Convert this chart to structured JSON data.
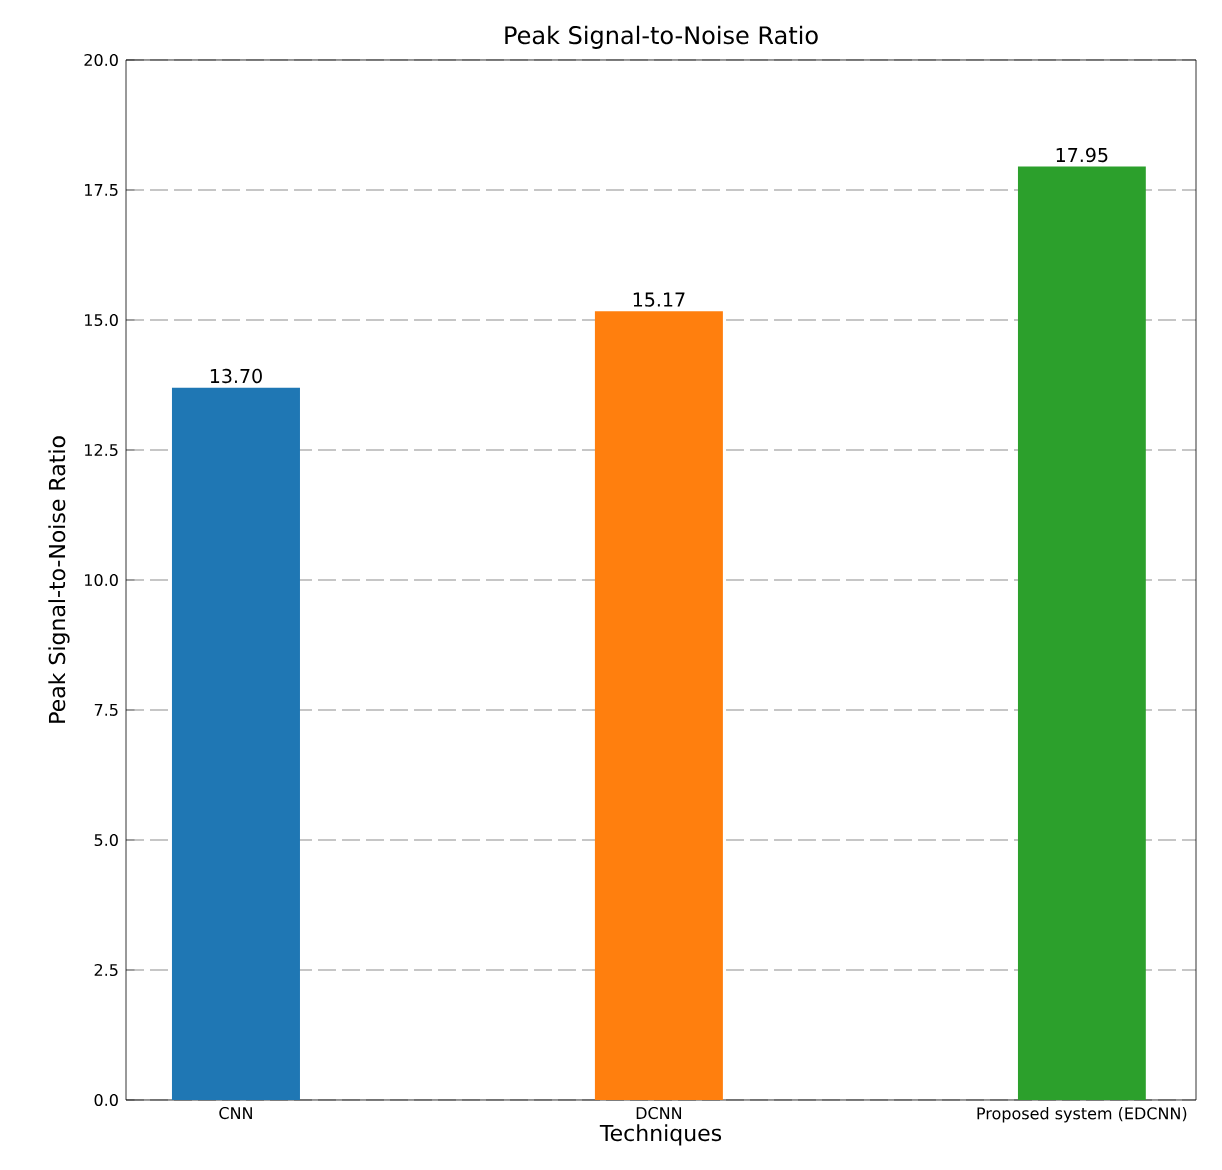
{
  "chart_data": {
    "type": "bar",
    "title": "Peak Signal-to-Noise Ratio",
    "xlabel": "Techniques",
    "ylabel": "Peak Signal-to-Noise Ratio",
    "categories": [
      "CNN",
      "DCNN",
      "Proposed system (EDCNN)"
    ],
    "values": [
      13.7,
      15.17,
      17.95
    ],
    "colors": [
      "#1f77b4",
      "#ff7f0e",
      "#2ca02c"
    ],
    "value_labels": [
      "13.70",
      "15.17",
      "17.95"
    ],
    "ylim": [
      0,
      20
    ],
    "yticks": [
      {
        "value": 0,
        "label": "0.0"
      },
      {
        "value": 2.5,
        "label": "2.5"
      },
      {
        "value": 5,
        "label": "5.0"
      },
      {
        "value": 7.5,
        "label": "7.5"
      },
      {
        "value": 10,
        "label": "10.0"
      },
      {
        "value": 12.5,
        "label": "12.5"
      },
      {
        "value": 15,
        "label": "15.0"
      },
      {
        "value": 17.5,
        "label": "17.5"
      },
      {
        "value": 20,
        "label": "20.0"
      }
    ],
    "grid": "y"
  }
}
